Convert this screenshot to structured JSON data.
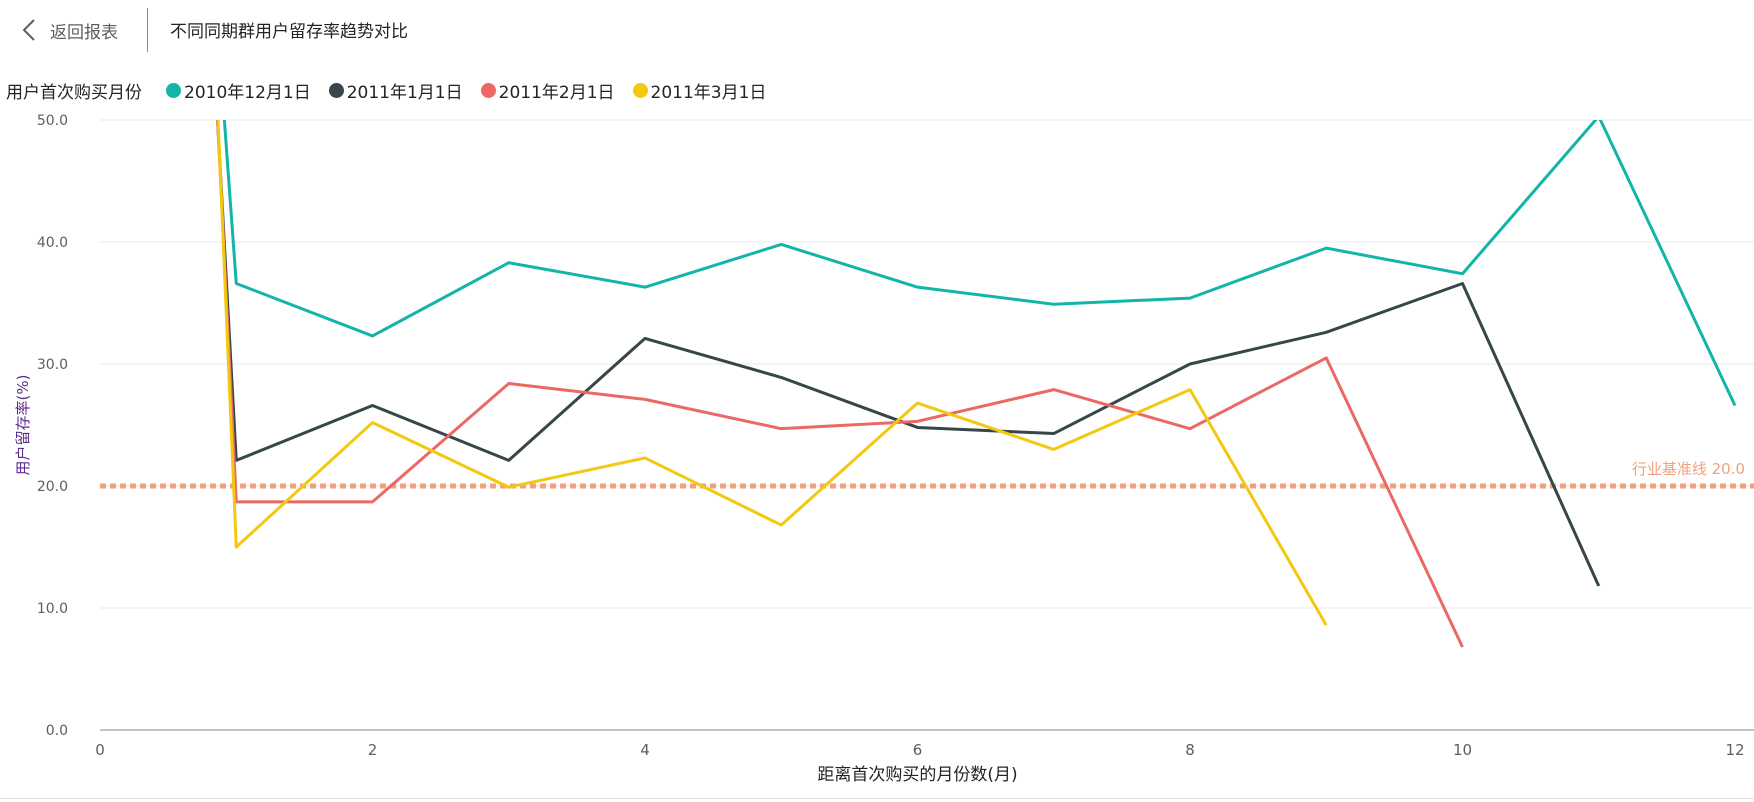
{
  "header": {
    "back_label": "返回报表",
    "title": "不同同期群用户留存率趋势对比"
  },
  "legend": {
    "title": "用户首次购买月份"
  },
  "colors": {
    "teal": "#13b5a8",
    "dark": "#374649",
    "red": "#ea6a63",
    "yellow": "#f2c811",
    "baseline": "#f0a27f",
    "grid": "#e9e9e9"
  },
  "chart_data": {
    "type": "line",
    "xlabel": "距离首次购买的月份数(月)",
    "ylabel": "用户留存率(%)",
    "xlim": [
      0,
      12
    ],
    "ylim": [
      0,
      50
    ],
    "x_ticks": [
      "0",
      "2",
      "4",
      "6",
      "8",
      "10",
      "12"
    ],
    "y_ticks": [
      "0.0",
      "10.0",
      "20.0",
      "30.0",
      "40.0",
      "50.0"
    ],
    "grid": true,
    "legend_position": "top-left",
    "reference_line": {
      "value": 20,
      "label": "行业基准线 20.0"
    },
    "series": [
      {
        "name": "2010年12月1日",
        "color": "#13b5a8",
        "points": [
          [
            0,
            100
          ],
          [
            1,
            36.6
          ],
          [
            2,
            32.3
          ],
          [
            3,
            38.3
          ],
          [
            4,
            36.3
          ],
          [
            5,
            39.8
          ],
          [
            6,
            36.3
          ],
          [
            7,
            34.9
          ],
          [
            8,
            35.4
          ],
          [
            9,
            39.5
          ],
          [
            10,
            37.4
          ],
          [
            11,
            50.3
          ],
          [
            12,
            26.6
          ]
        ]
      },
      {
        "name": "2011年1月1日",
        "color": "#374649",
        "points": [
          [
            0,
            100
          ],
          [
            1,
            22.1
          ],
          [
            2,
            26.6
          ],
          [
            3,
            22.1
          ],
          [
            4,
            32.1
          ],
          [
            5,
            28.9
          ],
          [
            6,
            24.8
          ],
          [
            7,
            24.3
          ],
          [
            8,
            30.0
          ],
          [
            9,
            32.6
          ],
          [
            10,
            36.6
          ],
          [
            11,
            11.8
          ]
        ]
      },
      {
        "name": "2011年2月1日",
        "color": "#ea6a63",
        "points": [
          [
            0,
            100
          ],
          [
            1,
            18.7
          ],
          [
            2,
            18.7
          ],
          [
            3,
            28.4
          ],
          [
            4,
            27.1
          ],
          [
            5,
            24.7
          ],
          [
            6,
            25.3
          ],
          [
            7,
            27.9
          ],
          [
            8,
            24.7
          ],
          [
            9,
            30.5
          ],
          [
            10,
            6.8
          ]
        ]
      },
      {
        "name": "2011年3月1日",
        "color": "#f2c811",
        "points": [
          [
            0,
            100
          ],
          [
            1,
            15.0
          ],
          [
            2,
            25.2
          ],
          [
            3,
            19.9
          ],
          [
            4,
            22.3
          ],
          [
            5,
            16.8
          ],
          [
            6,
            26.8
          ],
          [
            7,
            23.0
          ],
          [
            8,
            27.9
          ],
          [
            9,
            8.6
          ]
        ]
      }
    ]
  }
}
